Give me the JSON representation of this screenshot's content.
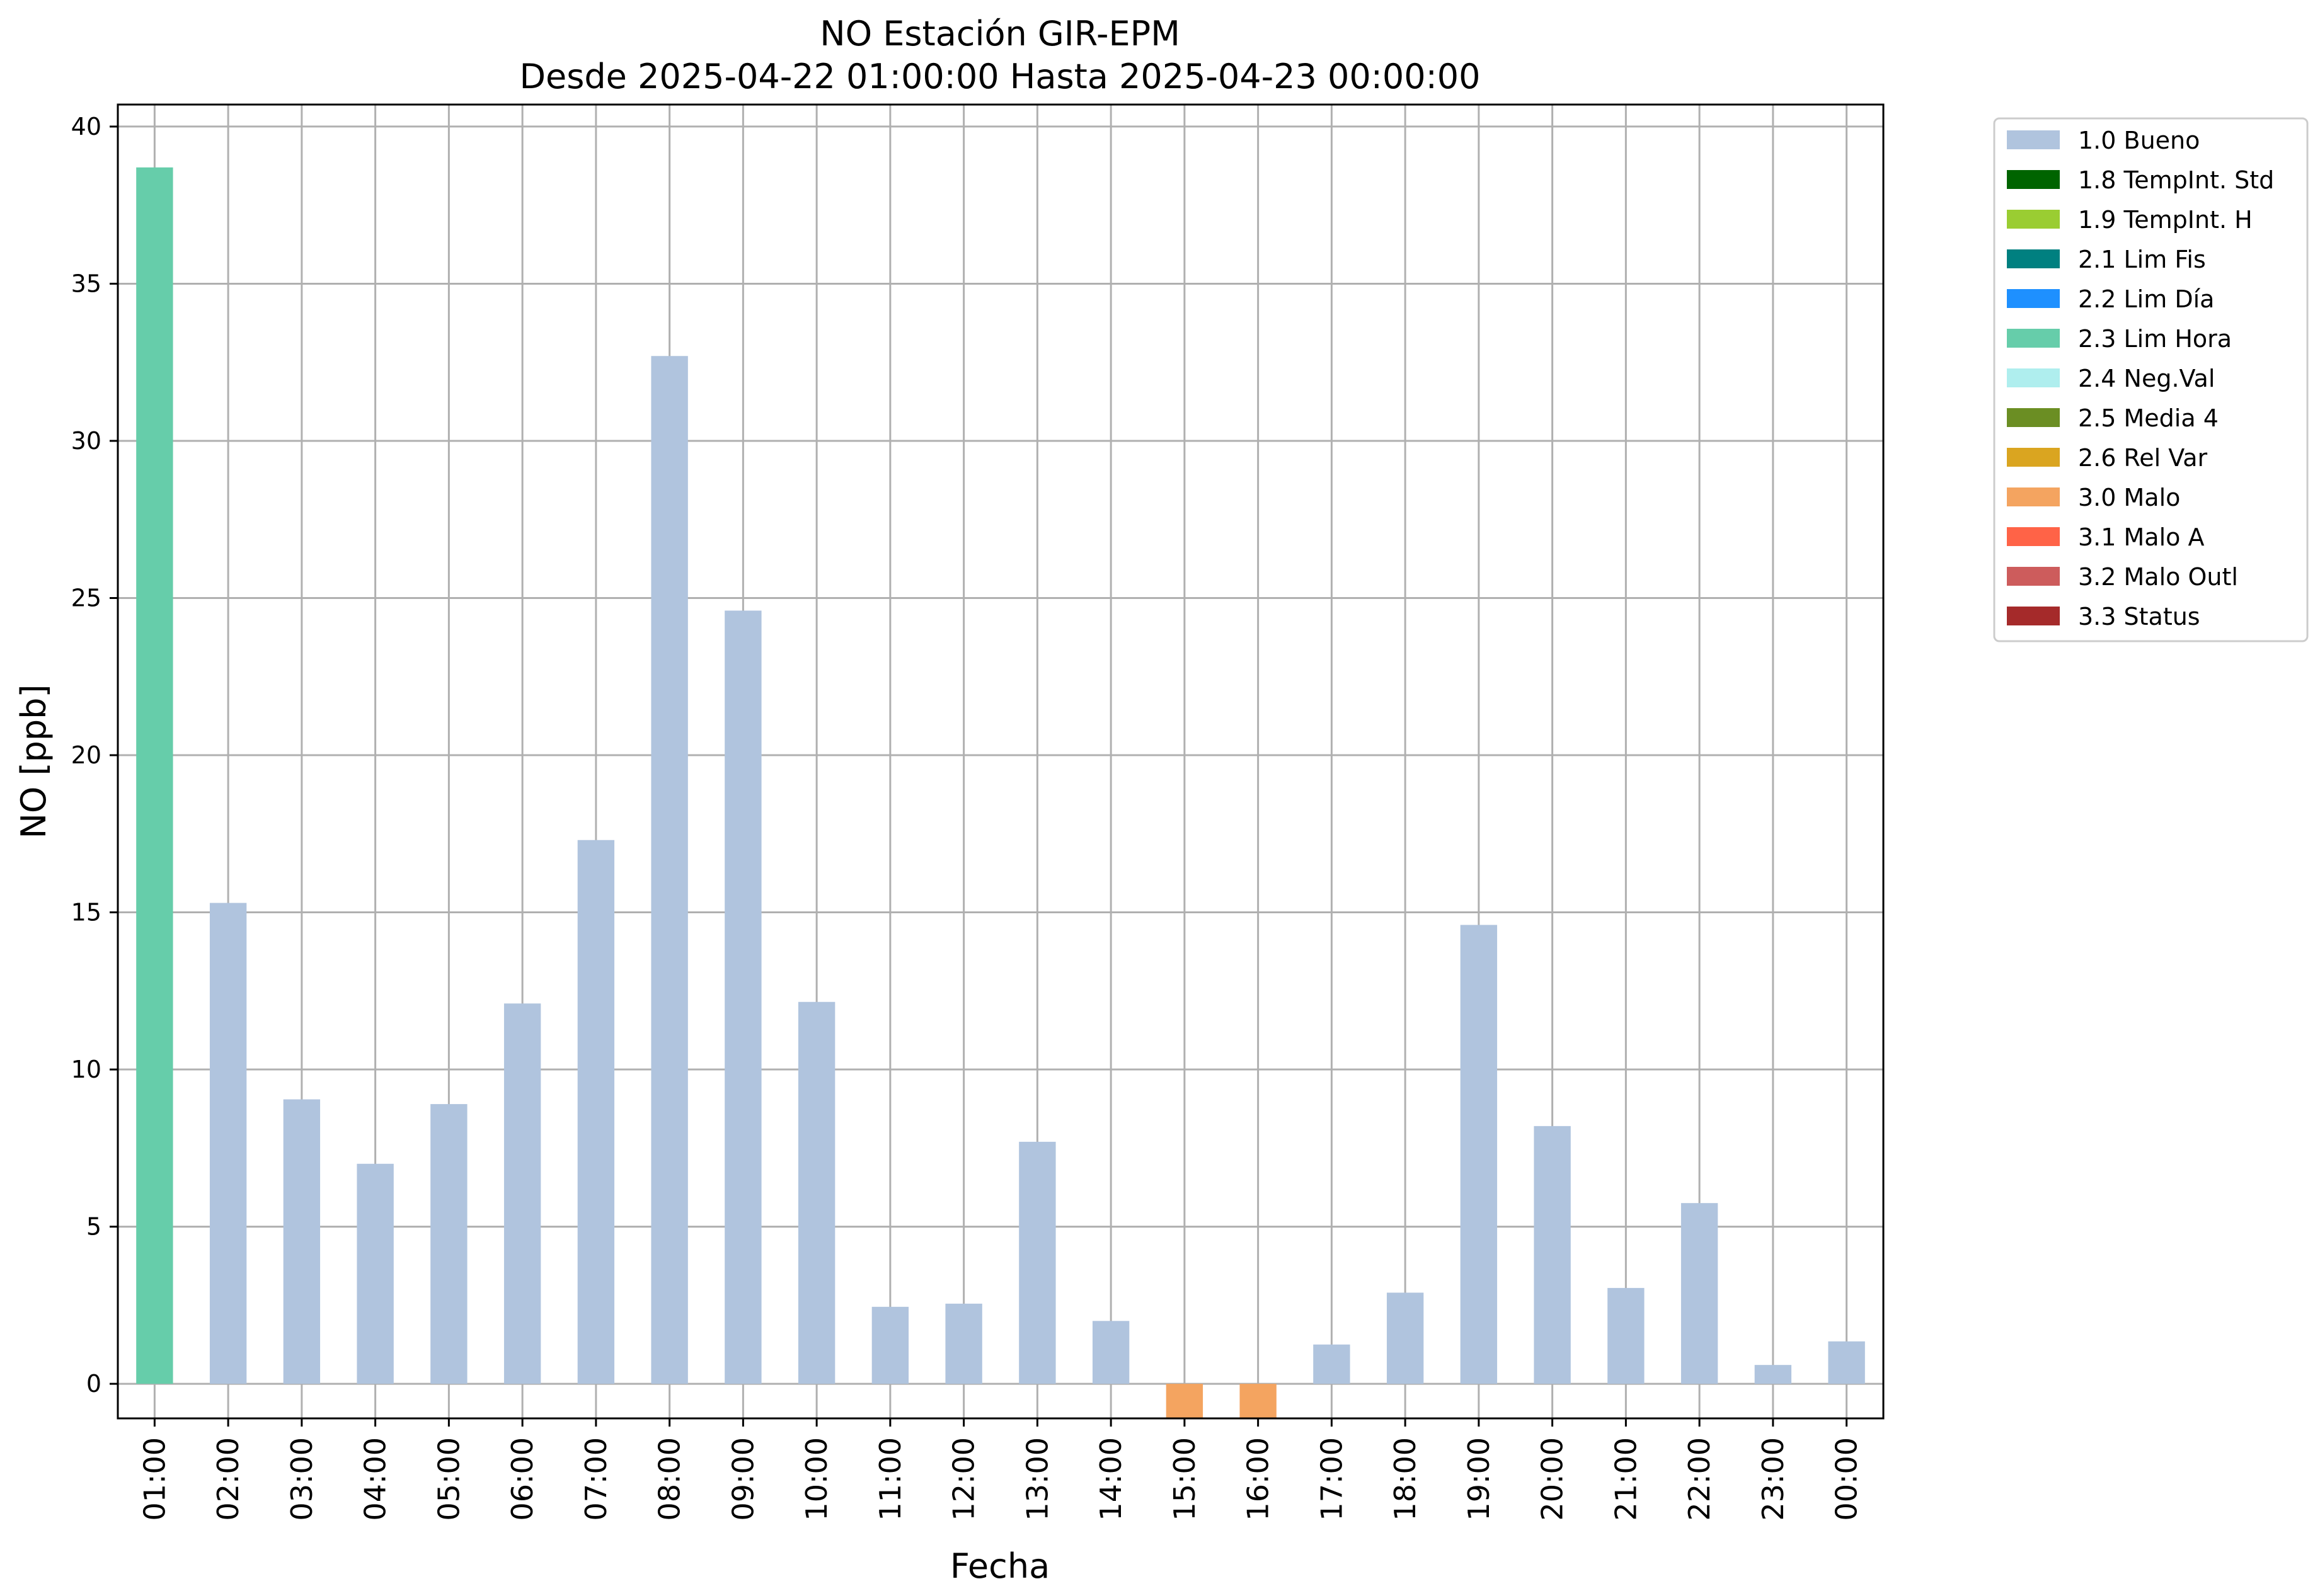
{
  "chart_data": {
    "type": "bar",
    "title": "NO Estación GIR-EPM",
    "subtitle": "Desde 2025-04-22 01:00:00 Hasta 2025-04-23 00:00:00",
    "xlabel": "Fecha",
    "ylabel": "NO [ppb]",
    "ylim": [
      -1.1,
      40.7
    ],
    "yticks": [
      0,
      5,
      10,
      15,
      20,
      25,
      30,
      35,
      40
    ],
    "grid": true,
    "legend_position": "outside-top-right",
    "categories": [
      "01:00",
      "02:00",
      "03:00",
      "04:00",
      "05:00",
      "06:00",
      "07:00",
      "08:00",
      "09:00",
      "10:00",
      "11:00",
      "12:00",
      "13:00",
      "14:00",
      "15:00",
      "16:00",
      "17:00",
      "18:00",
      "19:00",
      "20:00",
      "21:00",
      "22:00",
      "23:00",
      "00:00"
    ],
    "values": [
      38.7,
      15.3,
      9.05,
      7.0,
      8.9,
      12.1,
      17.3,
      32.7,
      24.6,
      12.15,
      2.45,
      2.55,
      7.7,
      2.0,
      -1.1,
      -1.1,
      1.25,
      2.9,
      14.6,
      8.2,
      3.05,
      5.75,
      0.6,
      1.35
    ],
    "flags": [
      "2.3 Lim Hora",
      "1.0 Bueno",
      "1.0 Bueno",
      "1.0 Bueno",
      "1.0 Bueno",
      "1.0 Bueno",
      "1.0 Bueno",
      "1.0 Bueno",
      "1.0 Bueno",
      "1.0 Bueno",
      "1.0 Bueno",
      "1.0 Bueno",
      "1.0 Bueno",
      "1.0 Bueno",
      "3.0 Malo",
      "3.0 Malo",
      "1.0 Bueno",
      "1.0 Bueno",
      "1.0 Bueno",
      "1.0 Bueno",
      "1.0 Bueno",
      "1.0 Bueno",
      "1.0 Bueno",
      "1.0 Bueno"
    ],
    "legend": [
      {
        "label": "1.0 Bueno",
        "color": "#b0c4de"
      },
      {
        "label": "1.8 TempInt. Std",
        "color": "#006400"
      },
      {
        "label": "1.9 TempInt. H",
        "color": "#9acd32"
      },
      {
        "label": "2.1 Lim Fis",
        "color": "#008080"
      },
      {
        "label": "2.2 Lim Día",
        "color": "#1e90ff"
      },
      {
        "label": "2.3 Lim Hora",
        "color": "#66cdaa"
      },
      {
        "label": "2.4 Neg.Val",
        "color": "#afeeee"
      },
      {
        "label": "2.5 Media 4",
        "color": "#6b8e23"
      },
      {
        "label": "2.6 Rel Var",
        "color": "#daa520"
      },
      {
        "label": "3.0 Malo",
        "color": "#f4a460"
      },
      {
        "label": "3.1 Malo A",
        "color": "#ff6347"
      },
      {
        "label": "3.2 Malo Outl",
        "color": "#cd5c5c"
      },
      {
        "label": "3.3 Status",
        "color": "#a52a2a"
      }
    ]
  }
}
